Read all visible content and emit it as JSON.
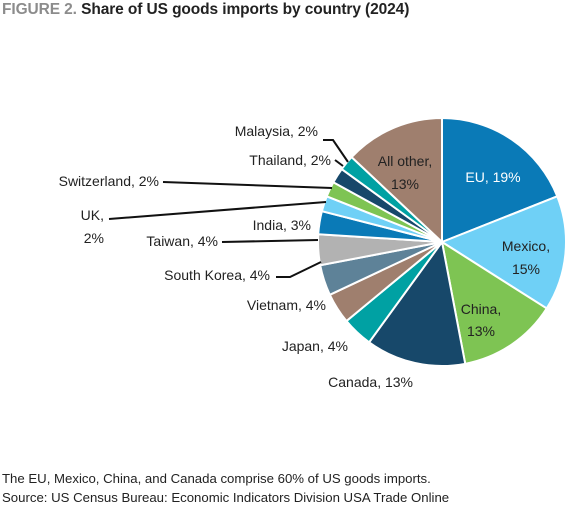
{
  "figure": {
    "number": "FIGURE 2.",
    "title": "Share of US goods imports by country (2024)"
  },
  "chart_data": {
    "type": "pie",
    "title": "Share of US goods imports by country (2024)",
    "slices": [
      {
        "name": "EU",
        "value": 19,
        "display": "19%",
        "color": "#0a7ab7"
      },
      {
        "name": "Mexico",
        "value": 15,
        "display": "15%",
        "color": "#6fd0f6"
      },
      {
        "name": "China",
        "value": 13,
        "display": "13%",
        "color": "#7ec453"
      },
      {
        "name": "Canada",
        "value": 13,
        "display": "13%",
        "color": "#17486a"
      },
      {
        "name": "Japan",
        "value": 4,
        "display": "4%",
        "color": "#00a1a3"
      },
      {
        "name": "Vietnam",
        "value": 4,
        "display": "4%",
        "color": "#9f7f6e"
      },
      {
        "name": "South Korea",
        "value": 4,
        "display": "4%",
        "color": "#5e8298"
      },
      {
        "name": "Taiwan",
        "value": 4,
        "display": "4%",
        "color": "#b2b2b2"
      },
      {
        "name": "India",
        "value": 3,
        "display": "3%",
        "color": "#0a7ab7"
      },
      {
        "name": "UK",
        "value": 2,
        "display": "2%",
        "color": "#6fd0f6"
      },
      {
        "name": "Switzerland",
        "value": 2,
        "display": "2%",
        "color": "#7ec453"
      },
      {
        "name": "Thailand",
        "value": 2,
        "display": "2%",
        "color": "#17486a"
      },
      {
        "name": "Malaysia",
        "value": 2,
        "display": "2%",
        "color": "#00a1a3"
      },
      {
        "name": "All other",
        "value": 13,
        "display": "13%",
        "color": "#9f7f6e"
      }
    ],
    "labels": {
      "eu": "EU, 19%",
      "mexico": "Mexico,",
      "mexico_pct": "15%",
      "china": "China,",
      "china_pct": "13%",
      "canada": "Canada, 13%",
      "japan": "Japan, 4%",
      "vietnam": "Vietnam, 4%",
      "south_korea": "South Korea, 4%",
      "taiwan": "Taiwan, 4%",
      "india": "India, 3%",
      "uk": "UK,",
      "uk_pct": "2%",
      "switzerland": "Switzerland, 2%",
      "thailand": "Thailand, 2%",
      "malaysia": "Malaysia, 2%",
      "all_other": "All other,",
      "all_other_pct": "13%"
    }
  },
  "notes": {
    "line1": "The EU, Mexico, China, and Canada comprise 60% of US goods imports.",
    "line2": "Source: US Census Bureau: Economic Indicators Division USA Trade Online"
  }
}
